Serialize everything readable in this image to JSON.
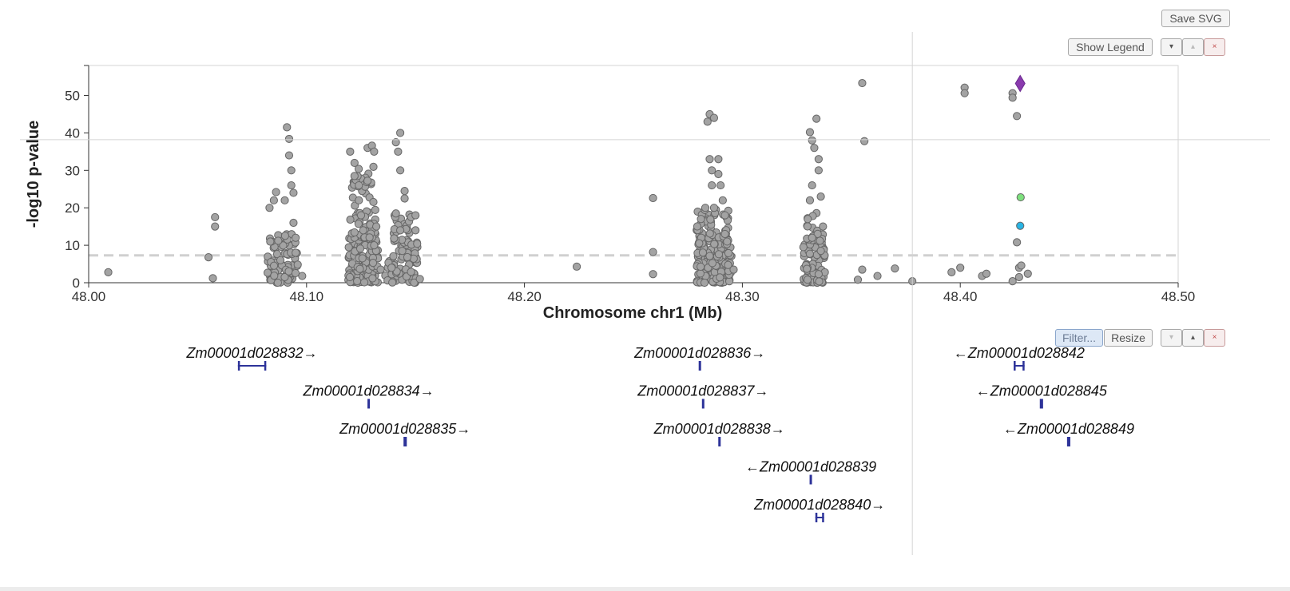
{
  "toolbar": {
    "save_svg": "Save SVG",
    "show_legend": "Show Legend",
    "filter": "Filter...",
    "resize": "Resize",
    "down_glyph": "▾",
    "up_glyph": "▴",
    "close_glyph": "×"
  },
  "chart_data": {
    "type": "scatter",
    "xlabel": "Chromosome chr1 (Mb)",
    "ylabel": "-log10 p-value",
    "xlim": [
      48.0,
      48.5
    ],
    "ylim": [
      0,
      58
    ],
    "xticks": [
      "48.00",
      "48.10",
      "48.20",
      "48.30",
      "48.40",
      "48.50"
    ],
    "yticks": [
      "0",
      "10",
      "20",
      "30",
      "40",
      "50"
    ],
    "significance_line": 7.3,
    "crosshair": {
      "x": 48.378,
      "y": 38.2
    },
    "colors": {
      "point": "#a3a3a3",
      "lead": "#8a3aae",
      "green": "#7de07d",
      "blue": "#29b4e4",
      "gene": "#2d3399"
    },
    "lead_snp": {
      "x": 48.4275,
      "y": 53.2
    },
    "highlight_points": [
      {
        "x": 48.4277,
        "y": 22.8,
        "color": "green"
      },
      {
        "x": 48.4275,
        "y": 15.2,
        "color": "blue"
      }
    ],
    "points": [
      [
        48.009,
        2.8
      ],
      [
        48.055,
        6.8
      ],
      [
        48.057,
        1.2
      ],
      [
        48.058,
        15.0
      ],
      [
        48.058,
        17.5
      ],
      [
        48.083,
        20.0
      ],
      [
        48.085,
        22.0
      ],
      [
        48.086,
        24.2
      ],
      [
        48.087,
        11.2
      ],
      [
        48.088,
        6.0
      ],
      [
        48.09,
        22.0
      ],
      [
        48.091,
        41.5
      ],
      [
        48.092,
        38.4
      ],
      [
        48.092,
        34.0
      ],
      [
        48.093,
        30.0
      ],
      [
        48.093,
        26.0
      ],
      [
        48.094,
        24.0
      ],
      [
        48.094,
        16.0
      ],
      [
        48.095,
        12.0
      ],
      [
        48.095,
        8.0
      ],
      [
        48.098,
        1.8
      ],
      [
        48.12,
        35.0
      ],
      [
        48.122,
        32.0
      ],
      [
        48.122,
        28.5
      ],
      [
        48.124,
        26.0
      ],
      [
        48.124,
        22.0
      ],
      [
        48.125,
        18.0
      ],
      [
        48.126,
        14.0
      ],
      [
        48.128,
        36.0
      ],
      [
        48.13,
        36.6
      ],
      [
        48.131,
        35.0
      ],
      [
        48.132,
        15.0
      ],
      [
        48.131,
        10.0
      ],
      [
        48.134,
        3.5
      ],
      [
        48.139,
        4.0
      ],
      [
        48.141,
        37.5
      ],
      [
        48.142,
        35.0
      ],
      [
        48.143,
        40.0
      ],
      [
        48.143,
        30.0
      ],
      [
        48.145,
        24.5
      ],
      [
        48.145,
        22.5
      ],
      [
        48.141,
        18.5
      ],
      [
        48.143,
        14.0
      ],
      [
        48.148,
        17.5
      ],
      [
        48.15,
        18.0
      ],
      [
        48.15,
        14.0
      ],
      [
        48.152,
        1.0
      ],
      [
        48.224,
        4.3
      ],
      [
        48.259,
        22.6
      ],
      [
        48.259,
        8.2
      ],
      [
        48.259,
        2.3
      ],
      [
        48.281,
        17.0
      ],
      [
        48.283,
        20.0
      ],
      [
        48.284,
        43.0
      ],
      [
        48.285,
        45.0
      ],
      [
        48.287,
        44.0
      ],
      [
        48.285,
        33.0
      ],
      [
        48.289,
        33.0
      ],
      [
        48.286,
        30.0
      ],
      [
        48.289,
        29.0
      ],
      [
        48.286,
        26.0
      ],
      [
        48.29,
        26.0
      ],
      [
        48.291,
        22.0
      ],
      [
        48.287,
        20.0
      ],
      [
        48.292,
        18.0
      ],
      [
        48.292,
        13.0
      ],
      [
        48.293,
        11.0
      ],
      [
        48.296,
        3.5
      ],
      [
        48.331,
        40.2
      ],
      [
        48.332,
        38.0
      ],
      [
        48.333,
        36.0
      ],
      [
        48.334,
        43.8
      ],
      [
        48.335,
        33.0
      ],
      [
        48.335,
        30.0
      ],
      [
        48.332,
        26.0
      ],
      [
        48.336,
        23.0
      ],
      [
        48.331,
        22.0
      ],
      [
        48.33,
        17.0
      ],
      [
        48.332,
        12.0
      ],
      [
        48.337,
        15.0
      ],
      [
        48.336,
        8.5
      ],
      [
        48.328,
        9.5
      ],
      [
        48.355,
        53.3
      ],
      [
        48.356,
        37.8
      ],
      [
        48.353,
        0.8
      ],
      [
        48.355,
        3.5
      ],
      [
        48.362,
        1.8
      ],
      [
        48.37,
        3.8
      ],
      [
        48.378,
        0.4
      ],
      [
        48.396,
        2.8
      ],
      [
        48.4,
        4.0
      ],
      [
        48.402,
        52.1
      ],
      [
        48.402,
        50.6
      ],
      [
        48.41,
        1.8
      ],
      [
        48.412,
        2.4
      ],
      [
        48.424,
        50.6
      ],
      [
        48.424,
        49.4
      ],
      [
        48.426,
        44.5
      ],
      [
        48.426,
        10.8
      ],
      [
        48.427,
        4.0
      ],
      [
        48.428,
        4.6
      ],
      [
        48.424,
        0.4
      ],
      [
        48.431,
        2.4
      ],
      [
        48.427,
        1.5
      ]
    ],
    "clusters": [
      {
        "x0": 48.082,
        "x1": 48.096,
        "y0": 0.0,
        "y1": 13.0,
        "n": 90
      },
      {
        "x0": 48.119,
        "x1": 48.133,
        "y0": 0.0,
        "y1": 12.0,
        "n": 130
      },
      {
        "x0": 48.12,
        "x1": 48.132,
        "y0": 12.0,
        "y1": 31.0,
        "n": 60
      },
      {
        "x0": 48.136,
        "x1": 48.151,
        "y0": 0.0,
        "y1": 10.0,
        "n": 70
      },
      {
        "x0": 48.14,
        "x1": 48.152,
        "y0": 10.0,
        "y1": 19.0,
        "n": 30
      },
      {
        "x0": 48.279,
        "x1": 48.295,
        "y0": 0.0,
        "y1": 10.0,
        "n": 140
      },
      {
        "x0": 48.279,
        "x1": 48.294,
        "y0": 10.0,
        "y1": 20.0,
        "n": 60
      },
      {
        "x0": 48.328,
        "x1": 48.338,
        "y0": 0.0,
        "y1": 11.0,
        "n": 80
      },
      {
        "x0": 48.329,
        "x1": 48.337,
        "y0": 11.0,
        "y1": 19.0,
        "n": 20
      }
    ],
    "genes": [
      {
        "name": "Zm00001d028832",
        "strand": "+",
        "start": 48.0685,
        "end": 48.0815,
        "row": 0
      },
      {
        "name": "Zm00001d028834",
        "strand": "+",
        "start": 48.128,
        "end": 48.129,
        "row": 1
      },
      {
        "name": "Zm00001d028835",
        "strand": "+",
        "start": 48.1445,
        "end": 48.146,
        "row": 2
      },
      {
        "name": "Zm00001d028836",
        "strand": "+",
        "start": 48.28,
        "end": 48.281,
        "row": 0
      },
      {
        "name": "Zm00001d028837",
        "strand": "+",
        "start": 48.2815,
        "end": 48.2825,
        "row": 1
      },
      {
        "name": "Zm00001d028838",
        "strand": "+",
        "start": 48.289,
        "end": 48.29,
        "row": 2
      },
      {
        "name": "Zm00001d028839",
        "strand": "-",
        "start": 48.331,
        "end": 48.3318,
        "row": 3
      },
      {
        "name": "Zm00001d028840",
        "strand": "+",
        "start": 48.3335,
        "end": 48.3375,
        "row": 4
      },
      {
        "name": "Zm00001d028842",
        "strand": "-",
        "start": 48.4245,
        "end": 48.4295,
        "row": 0
      },
      {
        "name": "Zm00001d028845",
        "strand": "-",
        "start": 48.4365,
        "end": 48.438,
        "row": 1
      },
      {
        "name": "Zm00001d028849",
        "strand": "-",
        "start": 48.449,
        "end": 48.4505,
        "row": 2
      }
    ]
  }
}
